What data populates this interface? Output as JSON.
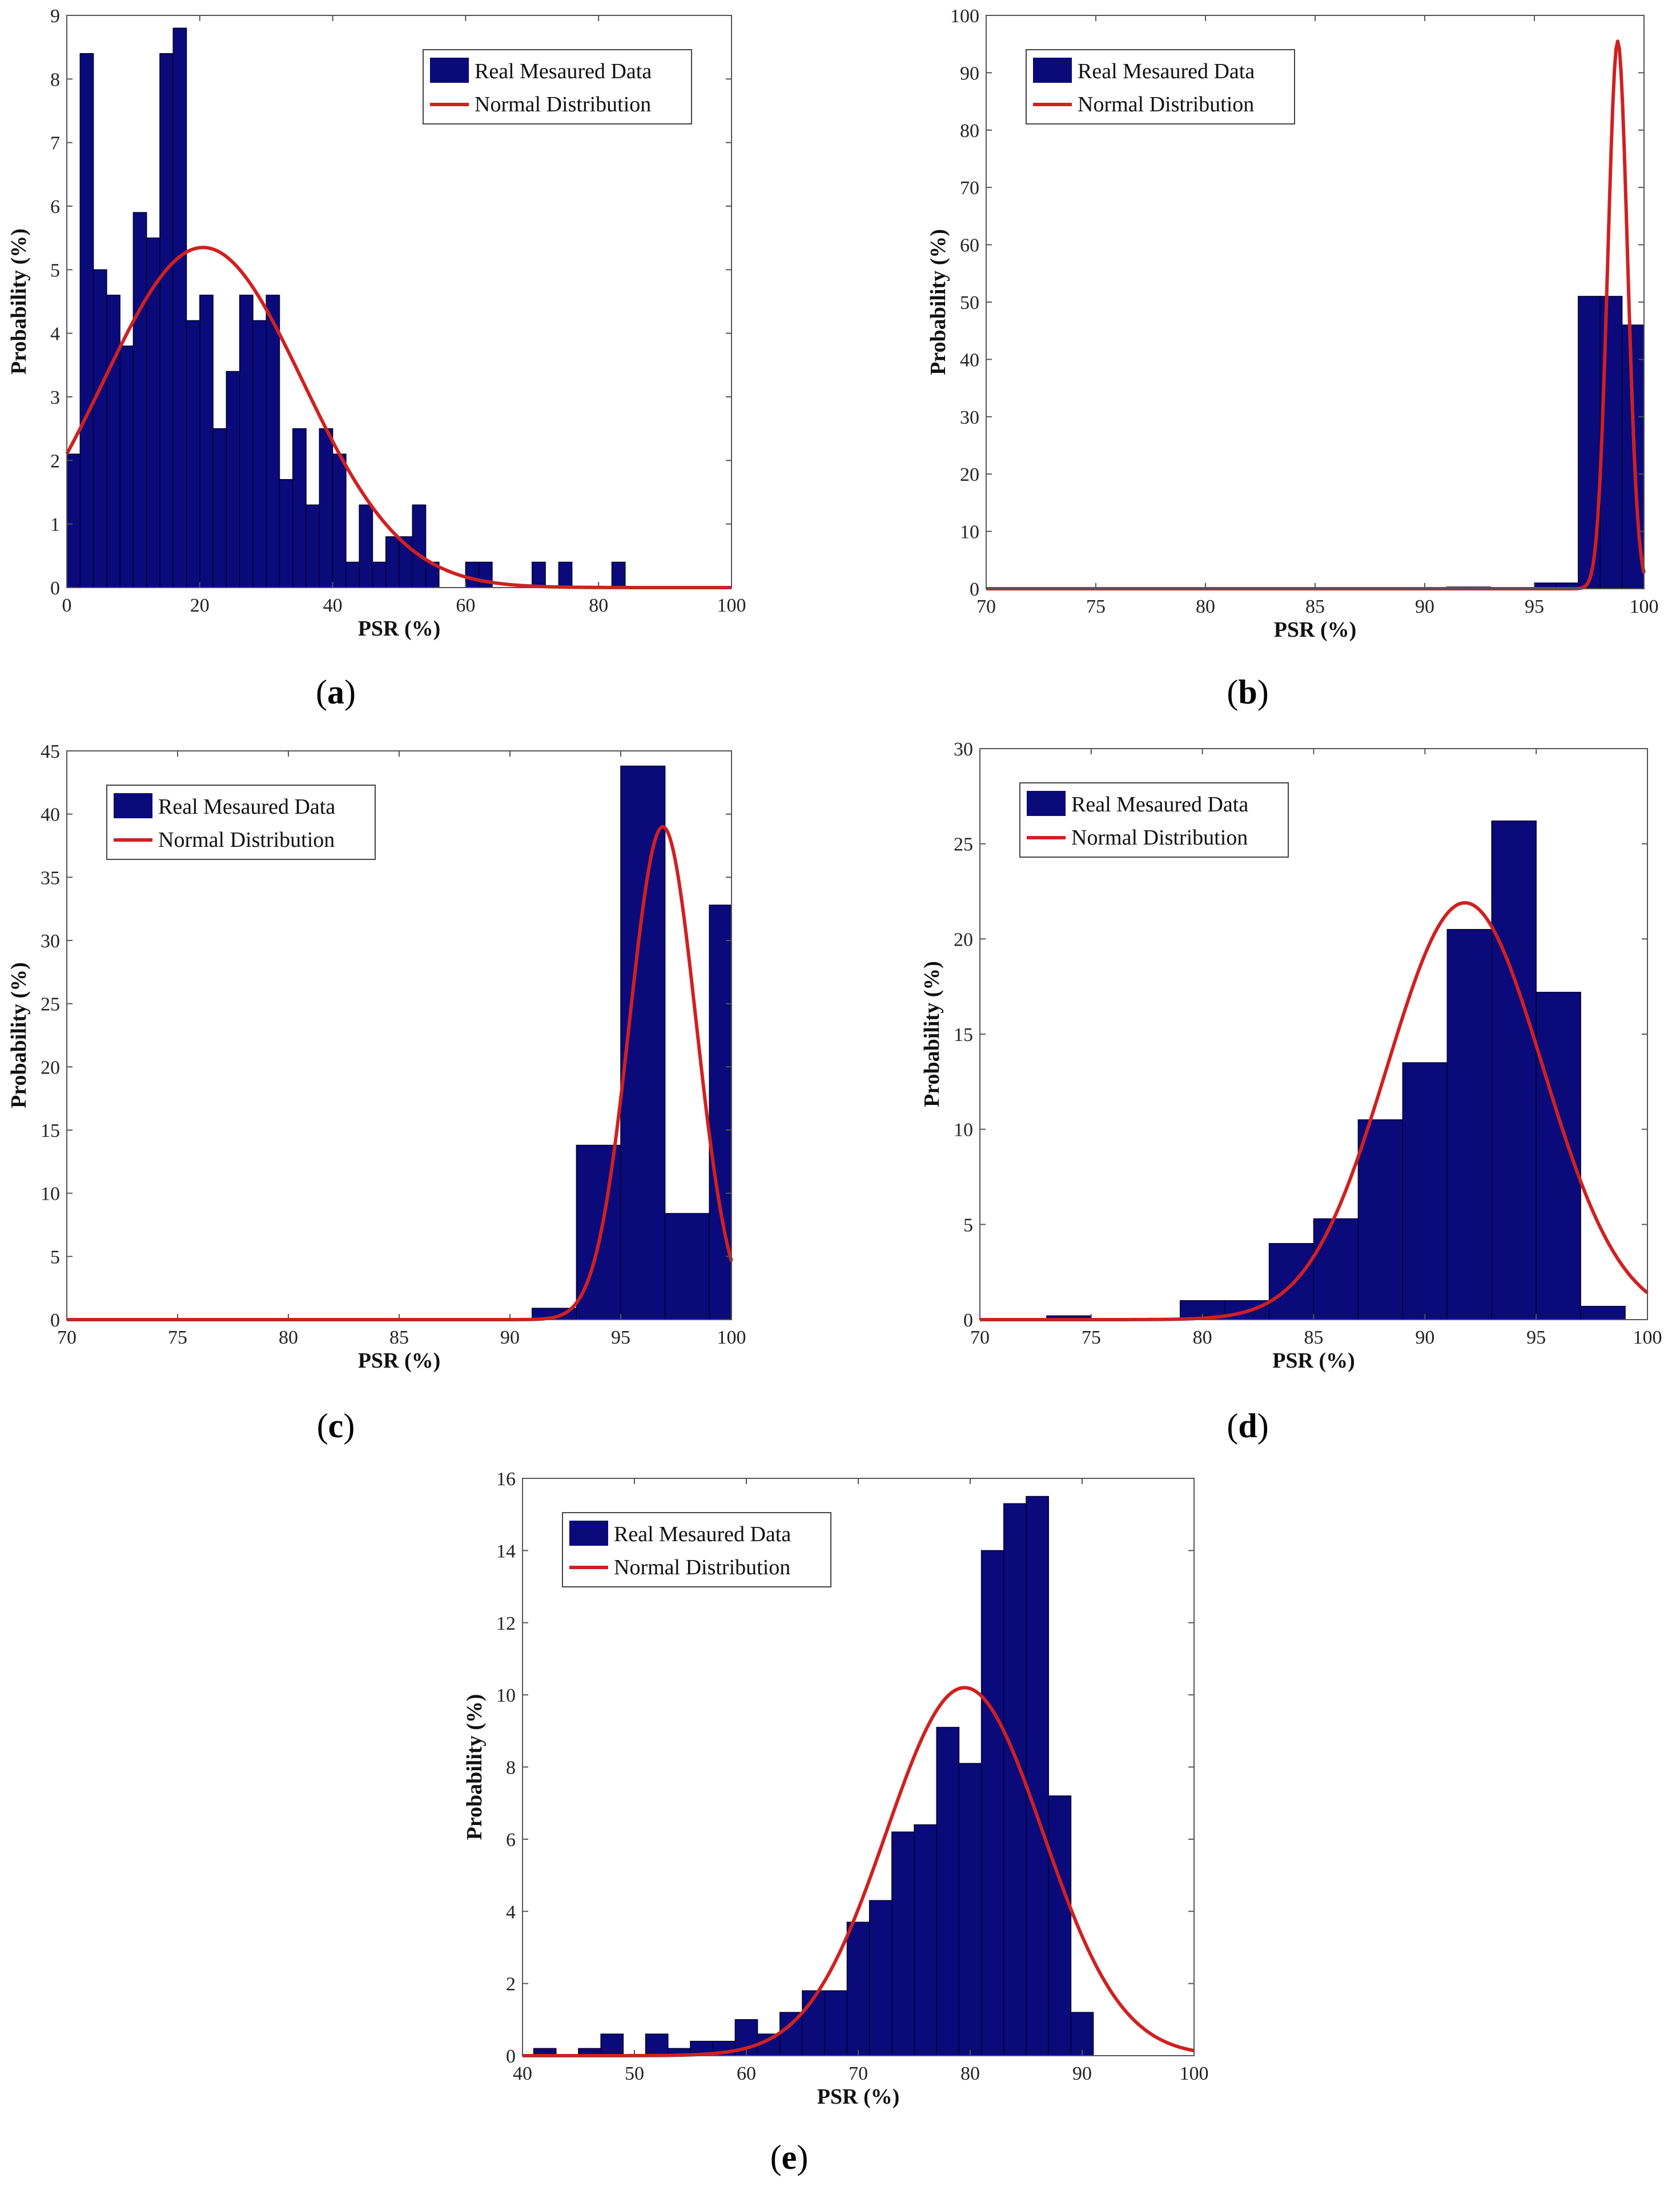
{
  "figure": {
    "legend_bar_label": "Real Mesaured Data",
    "legend_line_label": "Normal Distribution",
    "colors": {
      "bar": "#0a0a7a",
      "bar_edge": "#000033",
      "curve": "#d02020",
      "frame": "#555555"
    }
  },
  "chart_data": [
    {
      "id": "a",
      "caption": "a",
      "type": "bar",
      "title": "",
      "xlabel": "PSR (%)",
      "ylabel": "Probability (%)",
      "xlim": [
        0,
        100
      ],
      "ylim": [
        0,
        9
      ],
      "xticks": [
        0,
        20,
        40,
        60,
        80,
        100
      ],
      "yticks": [
        0,
        1,
        2,
        3,
        4,
        5,
        6,
        7,
        8,
        9
      ],
      "bin_width": 2,
      "bins": [
        {
          "x": 0,
          "v": 2.1
        },
        {
          "x": 2,
          "v": 8.4
        },
        {
          "x": 4,
          "v": 5.0
        },
        {
          "x": 6,
          "v": 4.6
        },
        {
          "x": 8,
          "v": 3.8
        },
        {
          "x": 10,
          "v": 5.9
        },
        {
          "x": 12,
          "v": 5.5
        },
        {
          "x": 14,
          "v": 8.4
        },
        {
          "x": 16,
          "v": 8.8
        },
        {
          "x": 18,
          "v": 4.2
        },
        {
          "x": 20,
          "v": 4.6
        },
        {
          "x": 22,
          "v": 2.5
        },
        {
          "x": 24,
          "v": 3.4
        },
        {
          "x": 26,
          "v": 4.6
        },
        {
          "x": 28,
          "v": 4.2
        },
        {
          "x": 30,
          "v": 4.6
        },
        {
          "x": 32,
          "v": 1.7
        },
        {
          "x": 34,
          "v": 2.5
        },
        {
          "x": 36,
          "v": 1.3
        },
        {
          "x": 38,
          "v": 2.5
        },
        {
          "x": 40,
          "v": 2.1
        },
        {
          "x": 42,
          "v": 0.4
        },
        {
          "x": 44,
          "v": 1.3
        },
        {
          "x": 46,
          "v": 0.4
        },
        {
          "x": 48,
          "v": 0.8
        },
        {
          "x": 50,
          "v": 0.8
        },
        {
          "x": 52,
          "v": 1.3
        },
        {
          "x": 54,
          "v": 0.4
        },
        {
          "x": 60,
          "v": 0.4
        },
        {
          "x": 62,
          "v": 0.4
        },
        {
          "x": 70,
          "v": 0.4
        },
        {
          "x": 74,
          "v": 0.4
        },
        {
          "x": 82,
          "v": 0.4
        }
      ],
      "normal": {
        "mean": 20.5,
        "peak": 5.35,
        "sd": 15.0
      },
      "legend_position": "top-right"
    },
    {
      "id": "b",
      "caption": "b",
      "type": "bar",
      "title": "",
      "xlabel": "PSR (%)",
      "ylabel": "Probability (%)",
      "xlim": [
        70,
        100
      ],
      "ylim": [
        0,
        100
      ],
      "xticks": [
        70,
        75,
        80,
        85,
        90,
        95,
        100
      ],
      "yticks": [
        0,
        10,
        20,
        30,
        40,
        50,
        60,
        70,
        80,
        90,
        100
      ],
      "bin_width": 1,
      "bins": [
        {
          "x": 91,
          "v": 0.3
        },
        {
          "x": 92,
          "v": 0.3
        },
        {
          "x": 95,
          "v": 1.0
        },
        {
          "x": 96,
          "v": 1.0
        },
        {
          "x": 97,
          "v": 51.0
        },
        {
          "x": 98,
          "v": 51.0
        },
        {
          "x": 99,
          "v": 46.0
        }
      ],
      "normal": {
        "mean": 98.8,
        "peak": 95.5,
        "sd": 0.45
      },
      "legend_position": "top-left"
    },
    {
      "id": "c",
      "caption": "c",
      "type": "bar",
      "title": "",
      "xlabel": "PSR (%)",
      "ylabel": "Probability (%)",
      "xlim": [
        70,
        100
      ],
      "ylim": [
        0,
        45
      ],
      "xticks": [
        70,
        75,
        80,
        85,
        90,
        95,
        100
      ],
      "yticks": [
        0,
        5,
        10,
        15,
        20,
        25,
        30,
        35,
        40,
        45
      ],
      "bin_width": 2,
      "bins": [
        {
          "x": 89,
          "v": 0.1
        },
        {
          "x": 91,
          "v": 0.9
        },
        {
          "x": 93,
          "v": 13.8
        },
        {
          "x": 95,
          "v": 43.8
        },
        {
          "x": 97,
          "v": 8.4
        },
        {
          "x": 99,
          "v": 32.8
        }
      ],
      "normal": {
        "mean": 96.9,
        "peak": 39.0,
        "sd": 1.5
      },
      "legend_position": "top-left"
    },
    {
      "id": "d",
      "caption": "d",
      "type": "bar",
      "title": "",
      "xlabel": "PSR (%)",
      "ylabel": "Probability (%)",
      "xlim": [
        70,
        100
      ],
      "ylim": [
        0,
        30
      ],
      "xticks": [
        70,
        75,
        80,
        85,
        90,
        95,
        100
      ],
      "yticks": [
        0,
        5,
        10,
        15,
        20,
        25,
        30
      ],
      "bin_width": 2,
      "bins": [
        {
          "x": 73,
          "v": 0.2
        },
        {
          "x": 79,
          "v": 1.0
        },
        {
          "x": 81,
          "v": 1.0
        },
        {
          "x": 83,
          "v": 4.0
        },
        {
          "x": 85,
          "v": 5.3
        },
        {
          "x": 87,
          "v": 10.5
        },
        {
          "x": 89,
          "v": 13.5
        },
        {
          "x": 91,
          "v": 20.5
        },
        {
          "x": 93,
          "v": 26.2
        },
        {
          "x": 95,
          "v": 17.2
        },
        {
          "x": 97,
          "v": 0.7
        }
      ],
      "normal": {
        "mean": 91.8,
        "peak": 21.9,
        "sd": 3.5
      },
      "legend_position": "top-left"
    },
    {
      "id": "e",
      "caption": "e",
      "type": "bar",
      "title": "",
      "xlabel": "PSR (%)",
      "ylabel": "Probability (%)",
      "xlim": [
        40,
        100
      ],
      "ylim": [
        0,
        16
      ],
      "xticks": [
        40,
        50,
        60,
        70,
        80,
        90,
        100
      ],
      "yticks": [
        0,
        2,
        4,
        6,
        8,
        10,
        12,
        14,
        16
      ],
      "bin_width": 2,
      "bins": [
        {
          "x": 41,
          "v": 0.2
        },
        {
          "x": 45,
          "v": 0.2
        },
        {
          "x": 47,
          "v": 0.6
        },
        {
          "x": 51,
          "v": 0.6
        },
        {
          "x": 53,
          "v": 0.2
        },
        {
          "x": 55,
          "v": 0.4
        },
        {
          "x": 57,
          "v": 0.4
        },
        {
          "x": 59,
          "v": 1.0
        },
        {
          "x": 61,
          "v": 0.6
        },
        {
          "x": 63,
          "v": 1.2
        },
        {
          "x": 65,
          "v": 1.8
        },
        {
          "x": 67,
          "v": 1.8
        },
        {
          "x": 69,
          "v": 3.7
        },
        {
          "x": 71,
          "v": 4.3
        },
        {
          "x": 73,
          "v": 6.2
        },
        {
          "x": 75,
          "v": 6.4
        },
        {
          "x": 77,
          "v": 9.1
        },
        {
          "x": 79,
          "v": 8.1
        },
        {
          "x": 81,
          "v": 14.0
        },
        {
          "x": 83,
          "v": 15.3
        },
        {
          "x": 85,
          "v": 15.5
        },
        {
          "x": 87,
          "v": 7.2
        },
        {
          "x": 89,
          "v": 1.2
        }
      ],
      "normal": {
        "mean": 79.5,
        "peak": 10.2,
        "sd": 7.0
      },
      "legend_position": "top-left"
    }
  ]
}
